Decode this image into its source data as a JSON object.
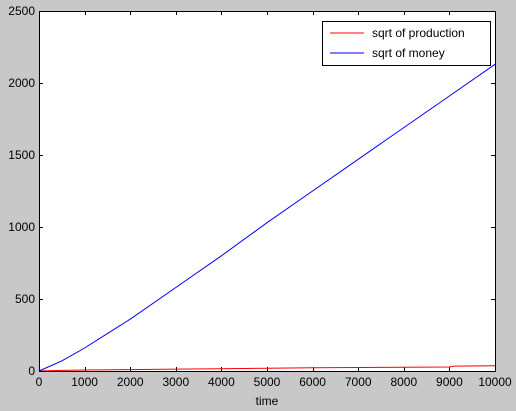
{
  "figure": {
    "background": "#c8c8c8",
    "axes_background": "#ffffff"
  },
  "chart_data": {
    "type": "line",
    "xlabel": "time",
    "ylabel": "",
    "title": "",
    "xlim": [
      0,
      10000
    ],
    "ylim": [
      0,
      2500
    ],
    "xticks": [
      0,
      1000,
      2000,
      3000,
      4000,
      5000,
      6000,
      7000,
      8000,
      9000,
      10000
    ],
    "yticks": [
      0,
      500,
      1000,
      1500,
      2000,
      2500
    ],
    "grid": false,
    "legend_position": "top-right",
    "series": [
      {
        "name": "sqrt of production",
        "color": "#ff0000",
        "x": [
          0,
          500,
          1000,
          2000,
          3000,
          4000,
          5000,
          6000,
          7000,
          8000,
          9000,
          9100,
          10000
        ],
        "y": [
          0,
          4,
          7,
          10,
          13,
          16,
          19,
          22,
          24,
          26,
          28,
          34,
          36
        ]
      },
      {
        "name": "sqrt of money",
        "color": "#0000ff",
        "x": [
          0,
          500,
          1000,
          1500,
          2000,
          3000,
          4000,
          5000,
          6000,
          7000,
          8000,
          9000,
          10000
        ],
        "y": [
          0,
          70,
          160,
          260,
          360,
          580,
          800,
          1030,
          1250,
          1470,
          1690,
          1910,
          2130
        ]
      }
    ]
  }
}
